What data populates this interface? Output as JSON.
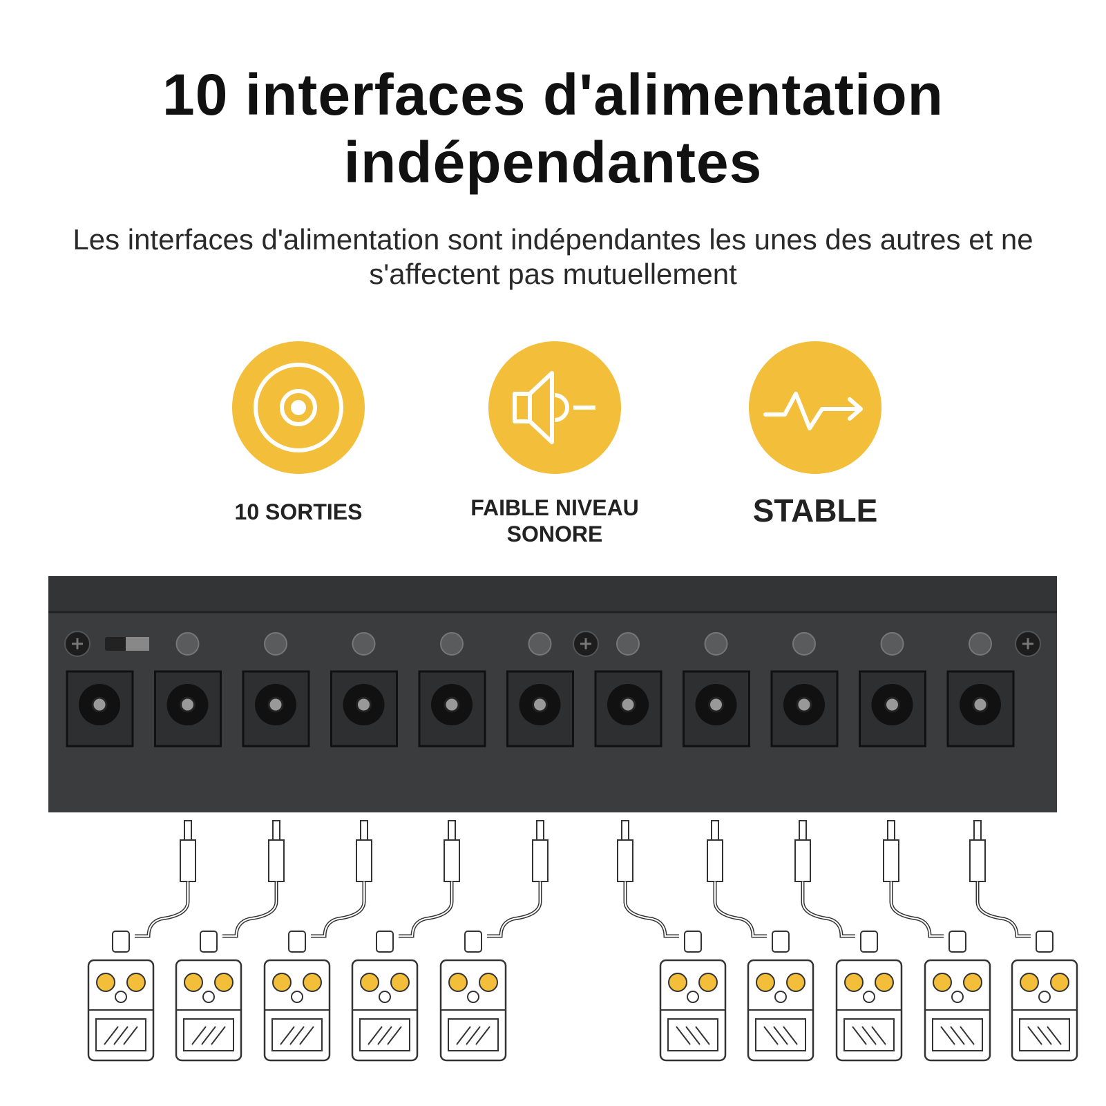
{
  "header": {
    "title": "10 interfaces d'alimentation indépendantes",
    "subtitle": "Les interfaces d'alimentation sont indépendantes les unes des autres et ne s'affectent pas mutuellement"
  },
  "features": [
    {
      "label": "10 SORTIES"
    },
    {
      "label": "FAIBLE NIVEAU SONORE"
    },
    {
      "label": "STABLE"
    }
  ]
}
